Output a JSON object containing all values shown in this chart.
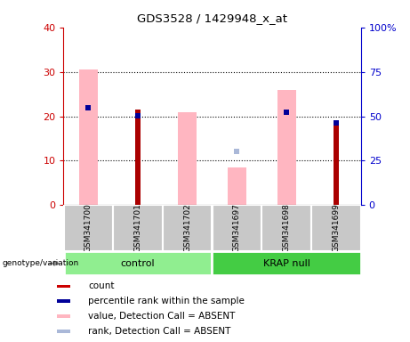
{
  "title": "GDS3528 / 1429948_x_at",
  "samples": [
    "GSM341700",
    "GSM341701",
    "GSM341702",
    "GSM341697",
    "GSM341698",
    "GSM341699"
  ],
  "ylim_left": [
    0,
    40
  ],
  "ylim_right": [
    0,
    100
  ],
  "yticks_left": [
    0,
    10,
    20,
    30,
    40
  ],
  "yticks_right": [
    0,
    25,
    50,
    75,
    100
  ],
  "yticklabels_right": [
    "0",
    "25",
    "50",
    "75",
    "100%"
  ],
  "red_bars": [
    null,
    21.5,
    null,
    null,
    null,
    18.5
  ],
  "blue_squares": [
    22,
    20.2,
    null,
    null,
    21,
    18.5
  ],
  "pink_bars": [
    30.5,
    null,
    21,
    8.5,
    26,
    null
  ],
  "lightblue_squares": [
    null,
    null,
    null,
    12,
    null,
    null
  ],
  "left_ylabel_color": "#cc0000",
  "right_ylabel_color": "#0000cc",
  "pink_bar_width": 0.18,
  "red_bar_width": 0.08,
  "legend_items": [
    {
      "label": "count",
      "color": "#cc0000"
    },
    {
      "label": "percentile rank within the sample",
      "color": "#000099"
    },
    {
      "label": "value, Detection Call = ABSENT",
      "color": "#ffb6c1"
    },
    {
      "label": "rank, Detection Call = ABSENT",
      "color": "#aab8d8"
    }
  ],
  "control_color": "#90ee90",
  "krap_color": "#44cc44",
  "sample_box_color": "#c8c8c8",
  "group_boundary": 2.5
}
